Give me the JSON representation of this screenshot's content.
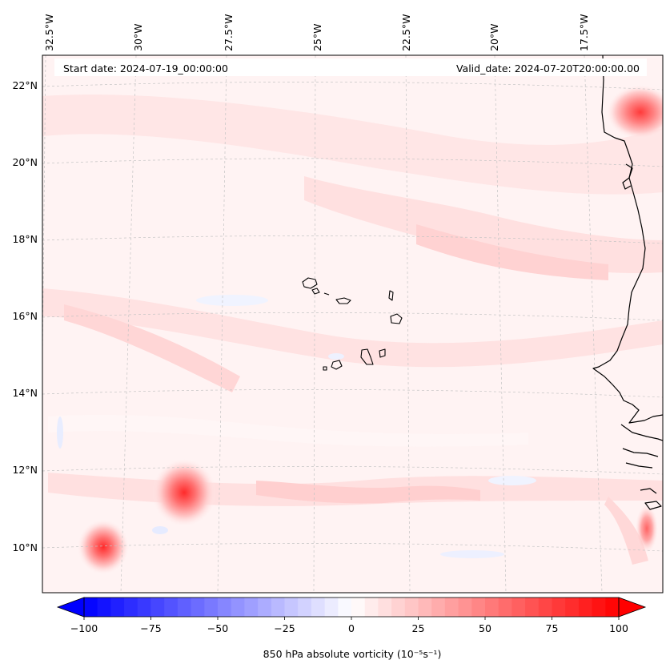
{
  "map": {
    "start_date": "Start date: 2024-07-19_00:00:00",
    "valid_date": "Valid_date: 2024-07-20T20:00:00.00",
    "lon_labels": [
      "32.5°W",
      "30°W",
      "27.5°W",
      "25°W",
      "22.5°W",
      "20°W",
      "17.5°W"
    ],
    "lat_labels": [
      "22°N",
      "20°N",
      "18°N",
      "16°N",
      "14°N",
      "12°N",
      "10°N"
    ]
  },
  "colorbar": {
    "label": "850 hPa absolute vorticity (10⁻⁵s⁻¹)",
    "ticks": [
      "−100",
      "−75",
      "−50",
      "−25",
      "0",
      "25",
      "50",
      "75",
      "100"
    ],
    "min": -100,
    "max": 100,
    "neg_color": "#0000ff",
    "pos_color": "#ff0000",
    "mid_color": "#ffffff"
  },
  "colors": {
    "coast": "#000000",
    "grid": "#bdbdbd",
    "field_light": "#ffe4e4",
    "field_mid": "#ffc8c8",
    "vortex_core": "#ff3030"
  }
}
